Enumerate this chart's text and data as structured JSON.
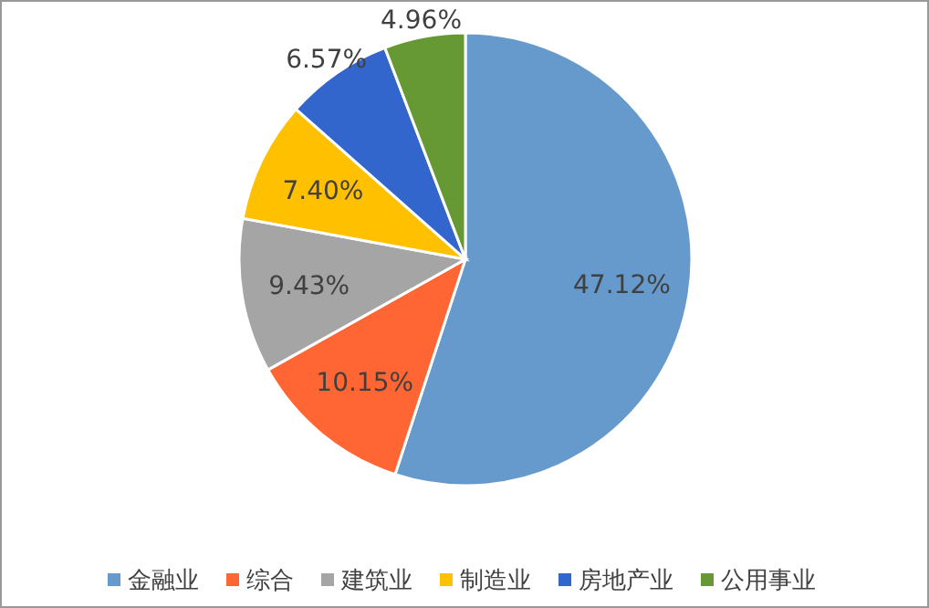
{
  "chart_data": {
    "type": "pie",
    "categories": [
      "金融业",
      "综合",
      "建筑业",
      "制造业",
      "房地产业",
      "公用事业"
    ],
    "values": [
      47.12,
      10.15,
      9.43,
      7.4,
      6.57,
      4.96
    ],
    "colors": [
      "#6699cc",
      "#ff6633",
      "#a5a5a5",
      "#ffc000",
      "#3366cc",
      "#669933"
    ],
    "value_labels": [
      "47.12%",
      "10.15%",
      "9.43%",
      "7.40%",
      "6.57%",
      "4.96%"
    ],
    "legend": "bottom"
  }
}
